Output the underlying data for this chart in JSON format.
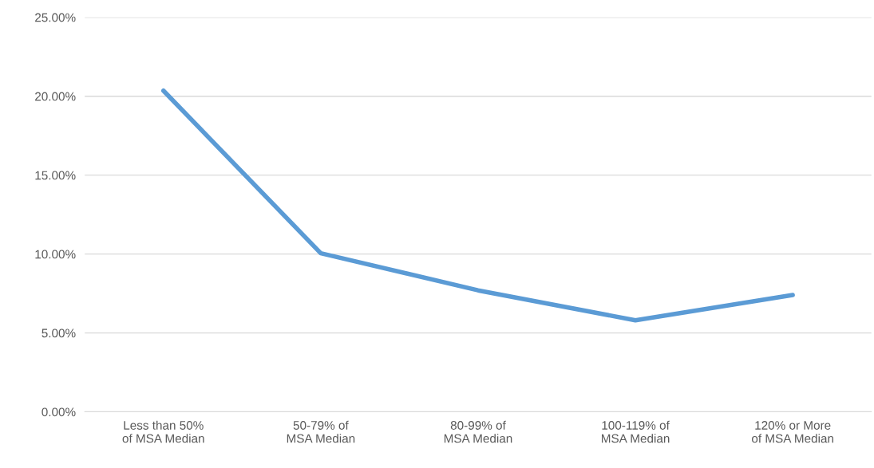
{
  "chart_data": {
    "type": "line",
    "categories": [
      "Less than 50% of MSA Median",
      "50-79% of MSA Median",
      "80-99% of MSA Median",
      "100-119% of MSA Median",
      "120% or More of MSA Median"
    ],
    "series": [
      {
        "color": "#5b9bd5",
        "values": [
          20.35,
          10.05,
          7.7,
          5.8,
          7.4
        ]
      }
    ],
    "ylim": [
      0,
      25
    ],
    "yticks": [
      {
        "value": 0,
        "label": "0.00%"
      },
      {
        "value": 5,
        "label": "5.00%"
      },
      {
        "value": 10,
        "label": "10.00%"
      },
      {
        "value": 15,
        "label": "15.00%"
      },
      {
        "value": 20,
        "label": "20.00%"
      },
      {
        "value": 25,
        "label": "25.00%"
      }
    ],
    "grid": "y",
    "legend": false,
    "marker": "none",
    "line_style": "solid"
  }
}
